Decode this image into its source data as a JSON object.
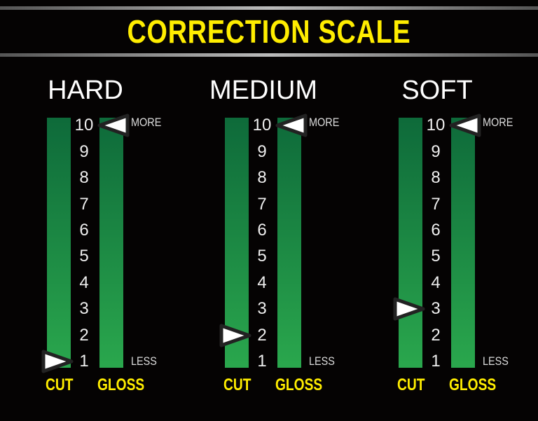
{
  "title": "CORRECTION SCALE",
  "scale": {
    "min": 1,
    "max": 10,
    "ticks": [
      "10",
      "9",
      "8",
      "7",
      "6",
      "5",
      "4",
      "3",
      "2",
      "1"
    ]
  },
  "labels": {
    "more": "MORE",
    "less": "LESS",
    "cut": "CUT",
    "gloss": "GLOSS"
  },
  "colors": {
    "title": "#ffed00",
    "bar_top": "#0e6a3a",
    "bar_bottom": "#2aa74d",
    "background": "#050303"
  },
  "panels": [
    {
      "name": "HARD",
      "cut_level": 1,
      "gloss_level": 10
    },
    {
      "name": "MEDIUM",
      "cut_level": 2,
      "gloss_level": 10
    },
    {
      "name": "SOFT",
      "cut_level": 3,
      "gloss_level": 10
    }
  ]
}
